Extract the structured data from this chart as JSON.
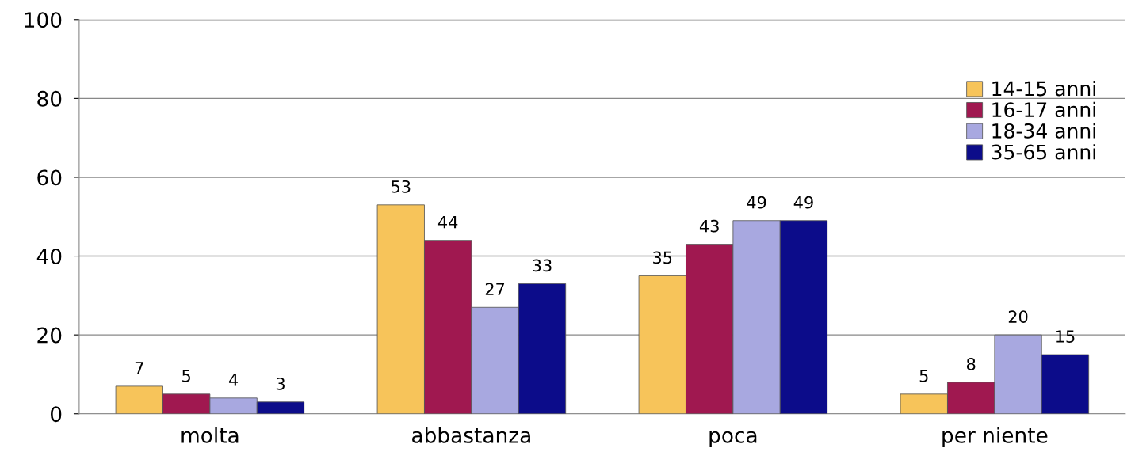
{
  "chart_data": {
    "type": "bar",
    "categories": [
      "molta",
      "abbastanza",
      "poca",
      "per niente"
    ],
    "series": [
      {
        "name": "14-15 anni",
        "color": "#f7c45a",
        "values": [
          7,
          53,
          35,
          5
        ]
      },
      {
        "name": "16-17 anni",
        "color": "#a01850",
        "values": [
          5,
          44,
          43,
          8
        ]
      },
      {
        "name": "18-34 anni",
        "color": "#a8a8e0",
        "values": [
          4,
          27,
          49,
          20
        ]
      },
      {
        "name": "35-65 anni",
        "color": "#0c0c8a",
        "values": [
          3,
          33,
          49,
          15
        ]
      }
    ],
    "ylim": [
      0,
      100
    ],
    "yticks": [
      0,
      20,
      40,
      60,
      80,
      100
    ],
    "grid": "y",
    "legend": "top right",
    "data_labels": true
  }
}
